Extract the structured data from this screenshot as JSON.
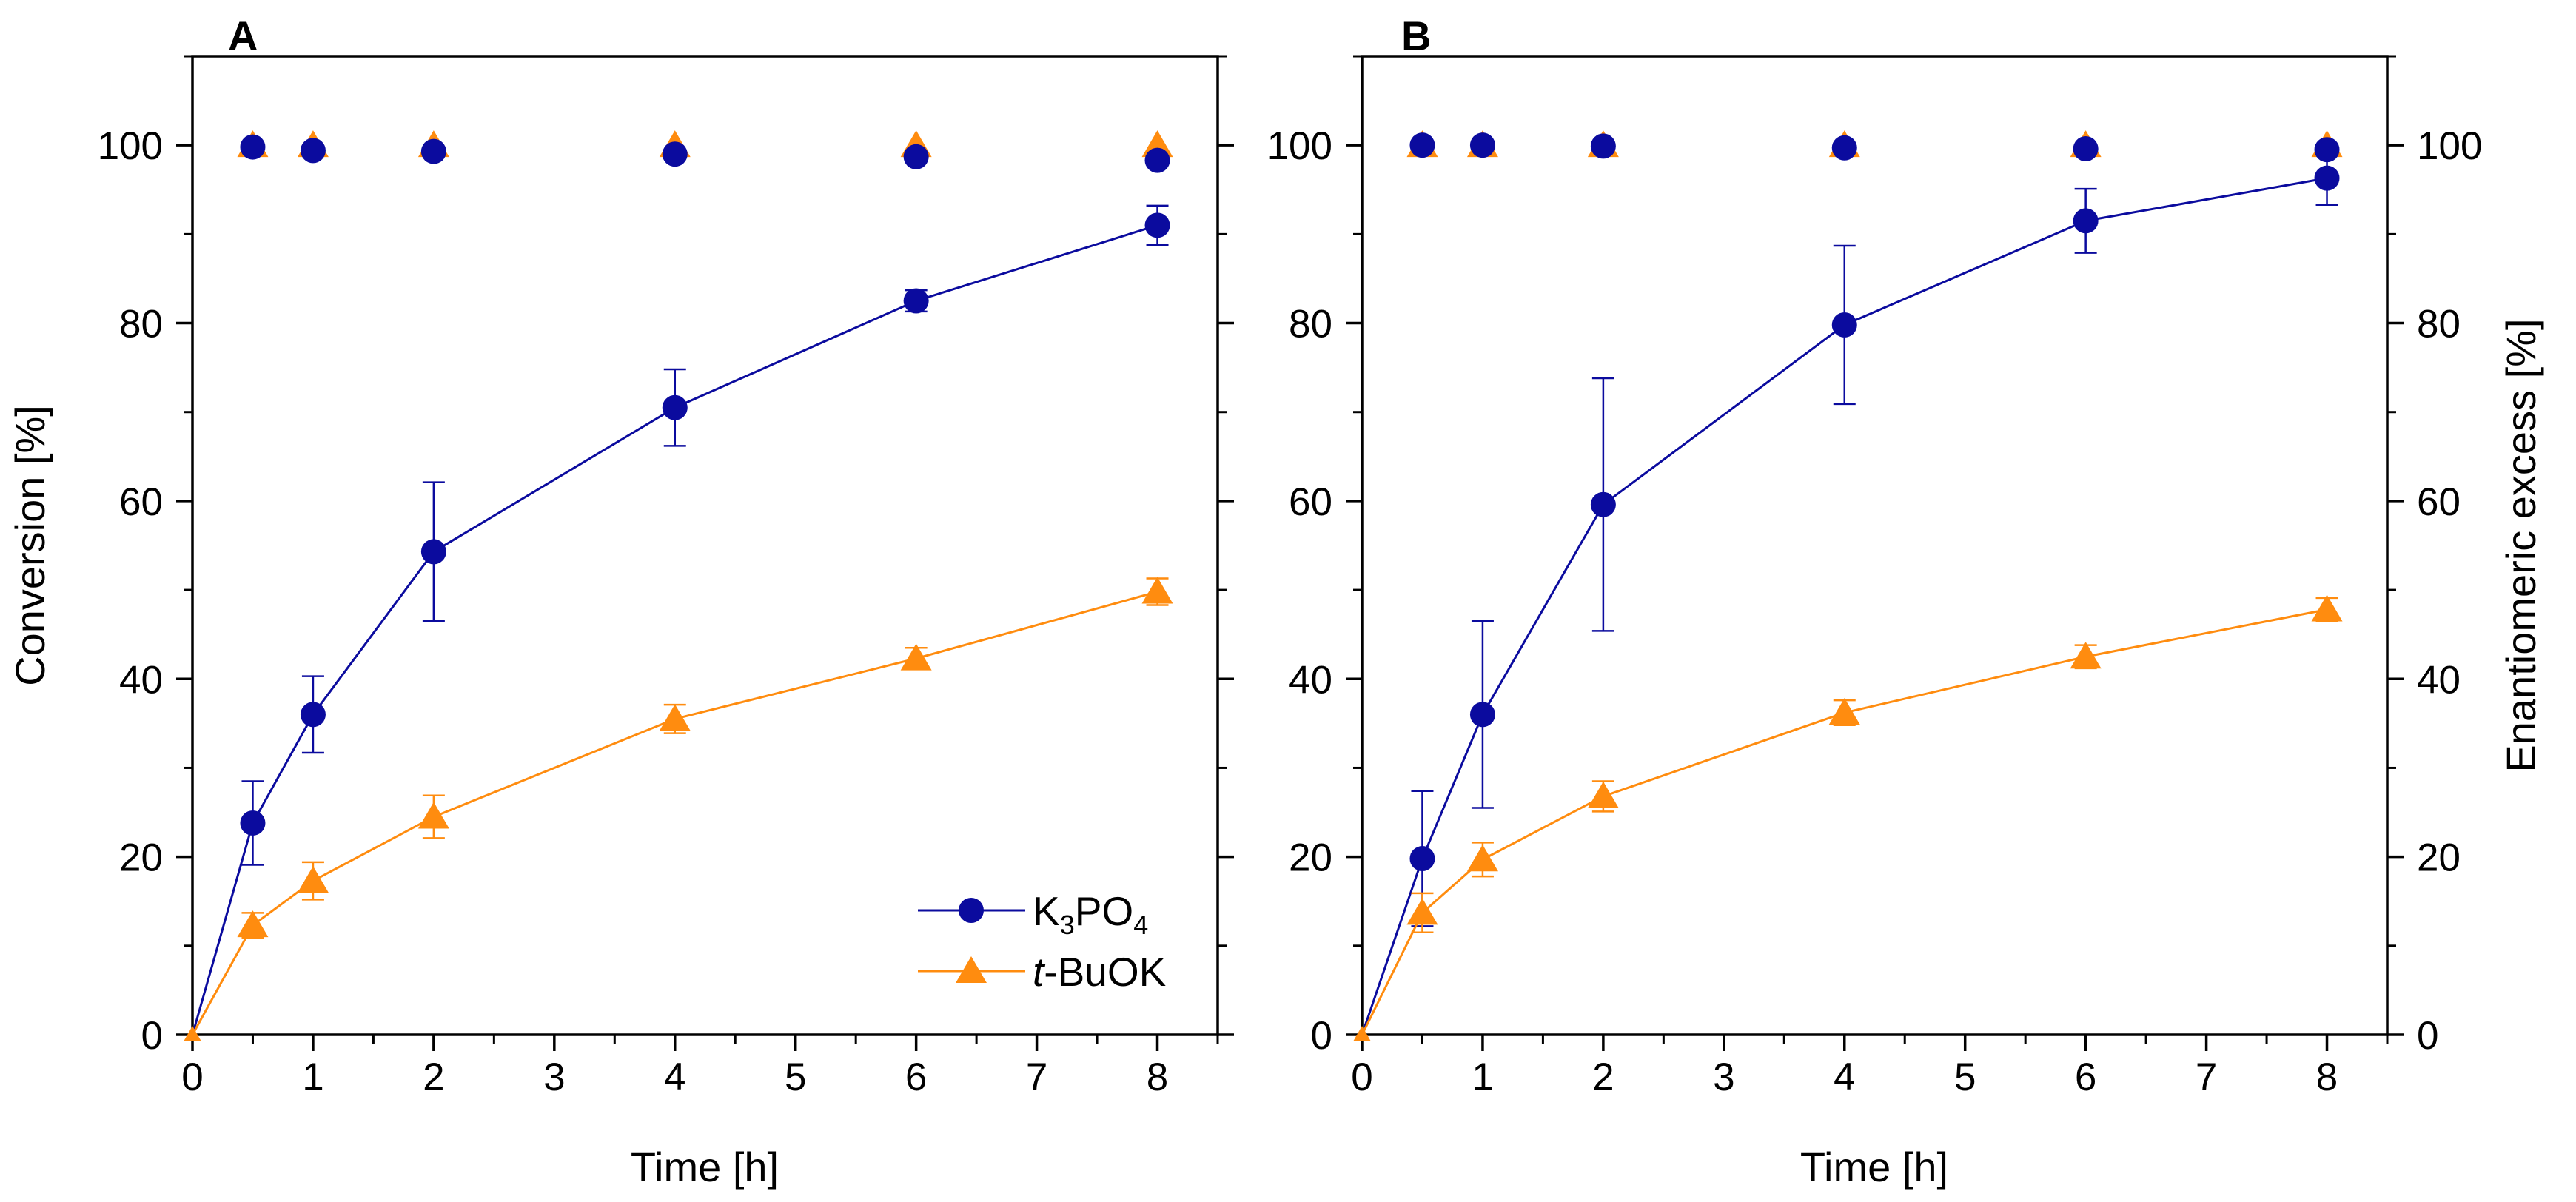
{
  "chart_data": [
    {
      "panel": "A",
      "type": "line",
      "xlabel": "Time [h]",
      "ylabel": "Conversion [%]",
      "xlim": [
        0,
        8.5
      ],
      "ylim": [
        0,
        110
      ],
      "x_ticks": [
        "0",
        "1",
        "2",
        "3",
        "4",
        "5",
        "6",
        "7",
        "8"
      ],
      "y_ticks": [
        "0",
        "20",
        "40",
        "60",
        "80",
        "100"
      ],
      "legend": {
        "location": "bottom-right",
        "entries": [
          {
            "base": "K",
            "sub1": "3",
            "mid": "PO",
            "sub2": "4"
          },
          {
            "italic": "t",
            "rest": "-BuOK"
          }
        ]
      },
      "series": [
        {
          "name": "K3PO4",
          "color": "#0b0b9e",
          "marker": "circle",
          "conversion": {
            "x": [
              0,
              0.5,
              1,
              2,
              4,
              6,
              8
            ],
            "y": [
              0,
              23.8,
              36.0,
              54.3,
              70.5,
              82.5,
              91.0
            ],
            "err": [
              0,
              4.7,
              4.3,
              7.8,
              4.3,
              1.2,
              2.2
            ]
          },
          "ee": {
            "x": [
              0.5,
              1,
              2,
              4,
              6,
              8
            ],
            "y": [
              99.8,
              99.4,
              99.3,
              99.0,
              98.7,
              98.3
            ]
          }
        },
        {
          "name": "t-BuOK",
          "color": "#ff8c0f",
          "marker": "triangle",
          "conversion": {
            "x": [
              0,
              0.5,
              1,
              2,
              4,
              6,
              8
            ],
            "y": [
              0,
              12.3,
              17.3,
              24.5,
              35.5,
              42.3,
              49.8
            ],
            "err": [
              0,
              1.4,
              2.1,
              2.4,
              1.6,
              1.2,
              1.5
            ]
          },
          "ee": {
            "x": [
              0.5,
              1,
              2,
              4,
              6,
              8
            ],
            "y": [
              100,
              100,
              100,
              100,
              100,
              100
            ]
          }
        }
      ]
    },
    {
      "panel": "B",
      "type": "line",
      "xlabel": "Time [h]",
      "ylabel": "Enantiomeric excess [%]",
      "xlim": [
        0,
        8.5
      ],
      "ylim": [
        0,
        110
      ],
      "x_ticks": [
        "0",
        "1",
        "2",
        "3",
        "4",
        "5",
        "6",
        "7",
        "8"
      ],
      "y_ticks": [
        "0",
        "20",
        "40",
        "60",
        "80",
        "100"
      ],
      "series": [
        {
          "name": "K3PO4",
          "color": "#0b0b9e",
          "marker": "circle",
          "conversion": {
            "x": [
              0,
              0.5,
              1,
              2,
              4,
              6,
              8
            ],
            "y": [
              0,
              19.8,
              36.0,
              59.6,
              79.8,
              91.5,
              96.3
            ],
            "err": [
              0,
              7.6,
              10.5,
              14.2,
              8.9,
              3.6,
              3.0
            ]
          },
          "ee": {
            "x": [
              0.5,
              1,
              2,
              4,
              6,
              8
            ],
            "y": [
              100,
              100,
              99.9,
              99.7,
              99.6,
              99.5
            ]
          }
        },
        {
          "name": "t-BuOK",
          "color": "#ff8c0f",
          "marker": "triangle",
          "conversion": {
            "x": [
              0,
              0.5,
              1,
              2,
              4,
              6,
              8
            ],
            "y": [
              0,
              13.7,
              19.7,
              26.8,
              36.2,
              42.5,
              47.8
            ],
            "err": [
              0,
              2.2,
              1.9,
              1.7,
              1.4,
              1.3,
              1.3
            ]
          },
          "ee": {
            "x": [
              0.5,
              1,
              2,
              4,
              6,
              8
            ],
            "y": [
              100,
              100,
              100,
              100,
              100,
              100
            ]
          }
        }
      ]
    }
  ]
}
